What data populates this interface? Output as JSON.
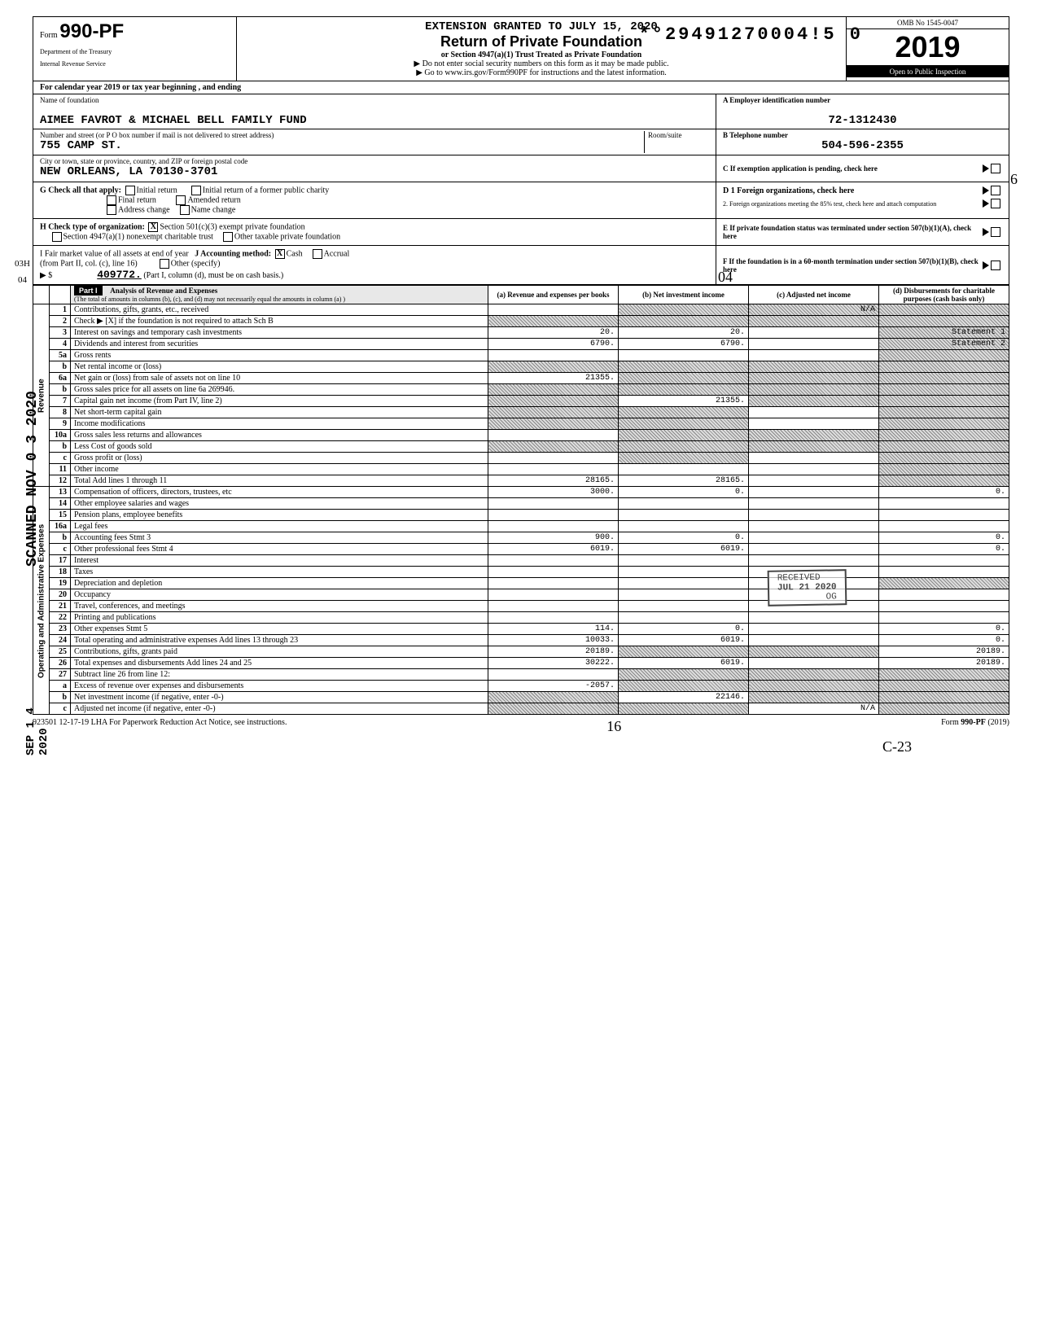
{
  "stamp_number": "*°29491270004!5  0",
  "form": {
    "prefix": "Form",
    "number": "990-PF",
    "dept1": "Department of the Treasury",
    "dept2": "Internal Revenue Service"
  },
  "header": {
    "extension_line": "EXTENSION GRANTED TO JULY 15, 2020",
    "title": "Return of Private Foundation",
    "subtitle1": "or Section 4947(a)(1) Trust Treated as Private Foundation",
    "subtitle2": "▶ Do not enter social security numbers on this form as it may be made public.",
    "subtitle3": "▶ Go to www.irs.gov/Form990PF for instructions and the latest information.",
    "omb": "OMB No  1545-0047",
    "year": "2019",
    "open": "Open to Public Inspection"
  },
  "cal_year": "For calendar year 2019 or tax year beginning                                            , and ending",
  "identity": {
    "name_label": "Name of foundation",
    "name": "AIMEE FAVROT & MICHAEL BELL FAMILY FUND",
    "street_label": "Number and street (or P O  box number if mail is not delivered to street address)",
    "room_label": "Room/suite",
    "street": "755 CAMP ST.",
    "city_label": "City or town, state or province, country, and ZIP or foreign postal code",
    "city": "NEW ORLEANS, LA   70130-3701",
    "A_label": "A  Employer identification number",
    "A_value": "72-1312430",
    "B_label": "B  Telephone number",
    "B_value": "504-596-2355",
    "C_label": "C  If exemption application is pending, check here"
  },
  "G": {
    "label": "G   Check all that apply:",
    "initial": "Initial return",
    "initial_former": "Initial return of a former public charity",
    "final": "Final return",
    "amended": "Amended return",
    "address": "Address change",
    "name_change": "Name change",
    "D1": "D  1  Foreign organizations, check here",
    "D2": "2.  Foreign organizations meeting the 85% test, check here and attach computation"
  },
  "H": {
    "label": "H   Check type of organization:",
    "opt1": "Section 501(c)(3) exempt private foundation",
    "opt2": "Section 4947(a)(1) nonexempt charitable trust",
    "opt3": "Other taxable private foundation",
    "E": "E   If private foundation status was terminated under section 507(b)(1)(A), check here"
  },
  "I": {
    "label": "I    Fair market value of all assets at end of year",
    "from": "(from Part II, col. (c), line 16)",
    "arrow": "▶ $",
    "value": "409772.",
    "J_label": "J   Accounting method:",
    "cash": "Cash",
    "accrual": "Accrual",
    "other": "Other (specify)",
    "note": "(Part I, column (d), must be on cash basis.)",
    "F": "F   If the foundation is in a 60-month termination under section 507(b)(1)(B), check here"
  },
  "part1": {
    "label": "Part I",
    "title": "Analysis of Revenue and Expenses",
    "note": "(The total of amounts in columns (b), (c), and (d) may not necessarily equal the amounts in column (a) )",
    "col_a": "(a) Revenue and expenses per books",
    "col_b": "(b) Net investment income",
    "col_c": "(c) Adjusted net income",
    "col_d": "(d) Disbursements for charitable purposes (cash basis only)"
  },
  "sections": {
    "revenue": "Revenue",
    "opadmin": "Operating and Administrative Expenses"
  },
  "rows": [
    {
      "n": "1",
      "desc": "Contributions, gifts, grants, etc., received",
      "a": "",
      "b": "shaded",
      "c": "N/A",
      "c_shaded": true,
      "d": "shaded"
    },
    {
      "n": "2",
      "desc": "Check ▶ [X] if the foundation is not required to attach Sch  B",
      "a": "shaded",
      "b": "shaded",
      "c": "shaded",
      "d": "shaded"
    },
    {
      "n": "3",
      "desc": "Interest on savings and temporary cash investments",
      "a": "20.",
      "b": "20.",
      "c": "",
      "d": "Statement 1",
      "d_shaded": true
    },
    {
      "n": "4",
      "desc": "Dividends and interest from securities",
      "a": "6790.",
      "b": "6790.",
      "c": "",
      "d": "Statement 2",
      "d_shaded": true
    },
    {
      "n": "5a",
      "desc": "Gross rents",
      "a": "",
      "b": "",
      "c": "",
      "d": "shaded"
    },
    {
      "n": "b",
      "desc": "Net rental income or (loss)",
      "a": "shaded",
      "b": "shaded",
      "c": "shaded",
      "d": "shaded"
    },
    {
      "n": "6a",
      "desc": "Net gain or (loss) from sale of assets not on line 10",
      "a": "21355.",
      "b": "shaded",
      "c": "shaded",
      "d": "shaded"
    },
    {
      "n": "b",
      "desc": "Gross sales price for all assets on line 6a         269946.",
      "a": "shaded",
      "b": "shaded",
      "c": "shaded",
      "d": "shaded"
    },
    {
      "n": "7",
      "desc": "Capital gain net income (from Part IV, line 2)",
      "a": "shaded",
      "b": "21355.",
      "c": "shaded",
      "d": "shaded"
    },
    {
      "n": "8",
      "desc": "Net short-term capital gain",
      "a": "shaded",
      "b": "shaded",
      "c": "",
      "d": "shaded"
    },
    {
      "n": "9",
      "desc": "Income modifications",
      "a": "shaded",
      "b": "shaded",
      "c": "",
      "d": "shaded"
    },
    {
      "n": "10a",
      "desc": "Gross sales less returns and allowances",
      "a": "",
      "b": "shaded",
      "c": "shaded",
      "d": "shaded"
    },
    {
      "n": "b",
      "desc": "Less  Cost of goods sold",
      "a": "shaded",
      "b": "shaded",
      "c": "shaded",
      "d": "shaded"
    },
    {
      "n": "c",
      "desc": "Gross profit or (loss)",
      "a": "",
      "b": "shaded",
      "c": "",
      "d": "shaded"
    },
    {
      "n": "11",
      "desc": "Other income",
      "a": "",
      "b": "",
      "c": "",
      "d": "shaded"
    },
    {
      "n": "12",
      "desc": "Total  Add lines 1 through 11",
      "a": "28165.",
      "b": "28165.",
      "c": "",
      "d": "shaded"
    },
    {
      "n": "13",
      "desc": "Compensation of officers, directors, trustees, etc",
      "a": "3000.",
      "b": "0.",
      "c": "",
      "d": "0."
    },
    {
      "n": "14",
      "desc": "Other employee salaries and wages",
      "a": "",
      "b": "",
      "c": "",
      "d": ""
    },
    {
      "n": "15",
      "desc": "Pension plans, employee benefits",
      "a": "",
      "b": "",
      "c": "",
      "d": ""
    },
    {
      "n": "16a",
      "desc": "Legal fees",
      "a": "",
      "b": "",
      "c": "",
      "d": ""
    },
    {
      "n": "b",
      "desc": "Accounting fees                     Stmt 3",
      "a": "900.",
      "b": "0.",
      "c": "",
      "d": "0."
    },
    {
      "n": "c",
      "desc": "Other professional fees          Stmt 4",
      "a": "6019.",
      "b": "6019.",
      "c": "",
      "d": "0."
    },
    {
      "n": "17",
      "desc": "Interest",
      "a": "",
      "b": "",
      "c": "",
      "d": ""
    },
    {
      "n": "18",
      "desc": "Taxes",
      "a": "",
      "b": "",
      "c": "",
      "d": ""
    },
    {
      "n": "19",
      "desc": "Depreciation and depletion",
      "a": "",
      "b": "",
      "c": "",
      "d": "shaded"
    },
    {
      "n": "20",
      "desc": "Occupancy",
      "a": "",
      "b": "",
      "c": "",
      "d": ""
    },
    {
      "n": "21",
      "desc": "Travel, conferences, and meetings",
      "a": "",
      "b": "",
      "c": "",
      "d": ""
    },
    {
      "n": "22",
      "desc": "Printing and publications",
      "a": "",
      "b": "",
      "c": "",
      "d": ""
    },
    {
      "n": "23",
      "desc": "Other expenses                       Stmt 5",
      "a": "114.",
      "b": "0.",
      "c": "",
      "d": "0."
    },
    {
      "n": "24",
      "desc": "Total operating and administrative expenses  Add lines 13 through 23",
      "a": "10033.",
      "b": "6019.",
      "c": "",
      "d": "0."
    },
    {
      "n": "25",
      "desc": "Contributions, gifts, grants paid",
      "a": "20189.",
      "b": "shaded",
      "c": "shaded",
      "d": "20189."
    },
    {
      "n": "26",
      "desc": "Total expenses and disbursements Add lines 24 and 25",
      "a": "30222.",
      "b": "6019.",
      "c": "",
      "d": "20189."
    },
    {
      "n": "27",
      "desc": "Subtract line 26 from line 12:",
      "a": "",
      "b": "shaded",
      "c": "shaded",
      "d": "shaded"
    },
    {
      "n": "a",
      "desc": "Excess of revenue over expenses and disbursements",
      "a": "-2057.",
      "b": "shaded",
      "c": "shaded",
      "d": "shaded"
    },
    {
      "n": "b",
      "desc": "Net investment income (if negative, enter -0-)",
      "a": "shaded",
      "b": "22146.",
      "c": "shaded",
      "d": "shaded"
    },
    {
      "n": "c",
      "desc": "Adjusted net income (if negative, enter -0-)",
      "a": "shaded",
      "b": "shaded",
      "c": "N/A",
      "d": "shaded"
    }
  ],
  "footer": {
    "left": "923501  12-17-19   LHA   For Paperwork Reduction Act Notice, see instructions.",
    "right": "Form 990-PF (2019)"
  },
  "received_stamp": {
    "line1": "RECEIVED",
    "line2": "JUL 21 2020",
    "line3": "OG"
  },
  "handwritten": {
    "left_03H": "03H",
    "left_04": "04",
    "right_6": "6",
    "right_04": "04",
    "bottom_16": "16",
    "bottom_c23": "C-23"
  },
  "vtext": {
    "scanned": "SCANNED NOV 0 3 2020",
    "received": "Received In",
    "sep": "SEP 1 4 2020"
  }
}
